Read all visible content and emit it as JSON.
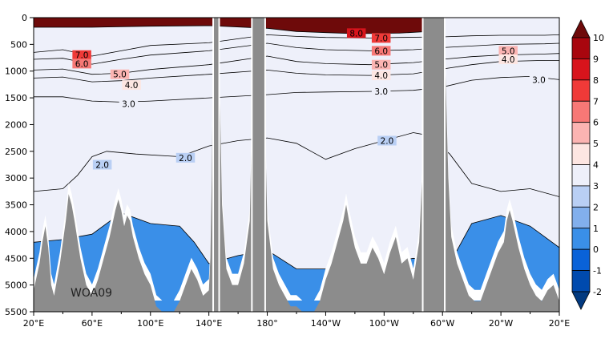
{
  "chart_data": {
    "type": "heatmap",
    "title": "",
    "watermark": "WOA09",
    "xlabel": "",
    "ylabel": "",
    "x_ticks": [
      "20°E",
      "60°E",
      "100°E",
      "140°E",
      "180°",
      "140°W",
      "100°W",
      "60°W",
      "20°W",
      "20°E"
    ],
    "y_ticks": [
      "0",
      "500",
      "1000",
      "1500",
      "2000",
      "2500",
      "3000",
      "3500",
      "4000",
      "4500",
      "5000",
      "5500"
    ],
    "ylim": [
      0,
      5500
    ],
    "y_inverted": true,
    "colorbar": {
      "labels": [
        "10",
        "9",
        "8",
        "7",
        "6",
        "5",
        "4",
        "3",
        "2",
        "1",
        "0",
        "-1",
        "-2"
      ],
      "colors": [
        "#6e0a0a",
        "#a8060e",
        "#d8141c",
        "#f03a38",
        "#f77876",
        "#fbb4b2",
        "#fde6e2",
        "#eef0fa",
        "#b9cff4",
        "#82afec",
        "#3a8fe8",
        "#0a62d8",
        "#004aae",
        "#023a80"
      ],
      "extend": "both"
    },
    "contour_labels": [
      {
        "text": "8.0",
        "x_deg": 241,
        "depth": 290
      },
      {
        "text": "7.0",
        "x_deg": 258,
        "depth": 380
      },
      {
        "text": "6.0",
        "x_deg": 258,
        "depth": 620
      },
      {
        "text": "5.0",
        "x_deg": 258,
        "depth": 880
      },
      {
        "text": "4.0",
        "x_deg": 258,
        "depth": 1080
      },
      {
        "text": "3.0",
        "x_deg": 258,
        "depth": 1380
      },
      {
        "text": "2.0",
        "x_deg": 262,
        "depth": 2300
      },
      {
        "text": "7.0",
        "x_deg": 53,
        "depth": 700
      },
      {
        "text": "6.0",
        "x_deg": 53,
        "depth": 860
      },
      {
        "text": "5.0",
        "x_deg": 79,
        "depth": 1060
      },
      {
        "text": "4.0",
        "x_deg": 87,
        "depth": 1260
      },
      {
        "text": "3.0",
        "x_deg": 85,
        "depth": 1610
      },
      {
        "text": "2.0",
        "x_deg": 124,
        "depth": 2620
      },
      {
        "text": "2.0",
        "x_deg": 67,
        "depth": 2750
      },
      {
        "text": "5.0",
        "x_deg": 345,
        "depth": 620
      },
      {
        "text": "4.0",
        "x_deg": 345,
        "depth": 780
      },
      {
        "text": "3.0",
        "x_deg": 366,
        "depth": 1160
      }
    ],
    "isolines": [
      {
        "level": 8,
        "pts": [
          [
            20,
            180
          ],
          [
            60,
            180
          ],
          [
            100,
            160
          ],
          [
            140,
            150
          ],
          [
            180,
            200
          ],
          [
            200,
            260
          ],
          [
            220,
            280
          ],
          [
            240,
            300
          ],
          [
            270,
            290
          ],
          [
            290,
            260
          ],
          [
            300,
            240
          ]
        ]
      },
      {
        "level": 7,
        "pts": [
          [
            20,
            650
          ],
          [
            40,
            600
          ],
          [
            60,
            720
          ],
          [
            80,
            620
          ],
          [
            100,
            520
          ],
          [
            140,
            470
          ],
          [
            180,
            320
          ],
          [
            200,
            350
          ],
          [
            220,
            370
          ],
          [
            250,
            380
          ],
          [
            270,
            370
          ],
          [
            300,
            360
          ],
          [
            320,
            340
          ],
          [
            340,
            330
          ],
          [
            370,
            330
          ],
          [
            380,
            320
          ]
        ]
      },
      {
        "level": 6,
        "pts": [
          [
            20,
            780
          ],
          [
            40,
            760
          ],
          [
            60,
            870
          ],
          [
            80,
            780
          ],
          [
            100,
            700
          ],
          [
            140,
            620
          ],
          [
            180,
            480
          ],
          [
            200,
            560
          ],
          [
            220,
            600
          ],
          [
            250,
            620
          ],
          [
            280,
            600
          ],
          [
            300,
            560
          ],
          [
            320,
            530
          ],
          [
            340,
            500
          ],
          [
            370,
            490
          ],
          [
            380,
            480
          ]
        ]
      },
      {
        "level": 5,
        "pts": [
          [
            20,
            980
          ],
          [
            40,
            960
          ],
          [
            60,
            1060
          ],
          [
            80,
            1040
          ],
          [
            100,
            970
          ],
          [
            140,
            880
          ],
          [
            180,
            720
          ],
          [
            200,
            820
          ],
          [
            220,
            860
          ],
          [
            250,
            880
          ],
          [
            280,
            840
          ],
          [
            300,
            780
          ],
          [
            320,
            730
          ],
          [
            340,
            700
          ],
          [
            370,
            680
          ],
          [
            380,
            670
          ]
        ]
      },
      {
        "level": 4,
        "pts": [
          [
            20,
            1130
          ],
          [
            40,
            1110
          ],
          [
            60,
            1200
          ],
          [
            80,
            1180
          ],
          [
            100,
            1130
          ],
          [
            140,
            1060
          ],
          [
            180,
            980
          ],
          [
            200,
            1040
          ],
          [
            220,
            1070
          ],
          [
            250,
            1080
          ],
          [
            280,
            1050
          ],
          [
            300,
            960
          ],
          [
            320,
            880
          ],
          [
            340,
            820
          ],
          [
            370,
            800
          ],
          [
            380,
            800
          ]
        ]
      },
      {
        "level": 3,
        "pts": [
          [
            20,
            1480
          ],
          [
            40,
            1480
          ],
          [
            60,
            1560
          ],
          [
            80,
            1580
          ],
          [
            100,
            1560
          ],
          [
            140,
            1500
          ],
          [
            180,
            1440
          ],
          [
            200,
            1400
          ],
          [
            220,
            1390
          ],
          [
            250,
            1380
          ],
          [
            280,
            1360
          ],
          [
            300,
            1300
          ],
          [
            320,
            1170
          ],
          [
            340,
            1120
          ],
          [
            360,
            1100
          ],
          [
            380,
            1160
          ]
        ]
      },
      {
        "level": 2,
        "pts": [
          [
            20,
            3250
          ],
          [
            40,
            3200
          ],
          [
            50,
            2950
          ],
          [
            60,
            2600
          ],
          [
            70,
            2500
          ],
          [
            90,
            2550
          ],
          [
            120,
            2600
          ],
          [
            140,
            2400
          ],
          [
            160,
            2300
          ],
          [
            180,
            2250
          ],
          [
            200,
            2350
          ],
          [
            220,
            2650
          ],
          [
            240,
            2450
          ],
          [
            260,
            2300
          ],
          [
            280,
            2150
          ],
          [
            290,
            2200
          ],
          [
            305,
            2550
          ],
          [
            320,
            3100
          ],
          [
            340,
            3250
          ],
          [
            360,
            3200
          ],
          [
            380,
            3350
          ]
        ]
      },
      {
        "level": 1,
        "pts": [
          [
            20,
            4200
          ],
          [
            40,
            4150
          ],
          [
            60,
            4050
          ],
          [
            80,
            3650
          ],
          [
            100,
            3850
          ],
          [
            120,
            3900
          ],
          [
            130,
            4200
          ],
          [
            140,
            4600
          ],
          [
            160,
            4450
          ],
          [
            180,
            4350
          ],
          [
            200,
            4700
          ],
          [
            240,
            4700
          ],
          [
            280,
            4500
          ],
          [
            305,
            4600
          ],
          [
            320,
            3850
          ],
          [
            340,
            3700
          ],
          [
            360,
            3900
          ],
          [
            380,
            4300
          ]
        ]
      }
    ],
    "land_columns": [
      {
        "x0": 143.5,
        "x1": 146.5,
        "top": 0
      },
      {
        "x0": 170,
        "x1": 178,
        "top": 0
      },
      {
        "x0": 287,
        "x1": 301,
        "top": 0
      }
    ],
    "bathymetry": [
      [
        20,
        5100
      ],
      [
        24,
        4600
      ],
      [
        26,
        4200
      ],
      [
        28,
        3900
      ],
      [
        30,
        4300
      ],
      [
        32,
        5000
      ],
      [
        34,
        5200
      ],
      [
        38,
        4600
      ],
      [
        42,
        3800
      ],
      [
        44,
        3300
      ],
      [
        46,
        3500
      ],
      [
        48,
        3800
      ],
      [
        52,
        4500
      ],
      [
        56,
        5000
      ],
      [
        60,
        5200
      ],
      [
        64,
        4900
      ],
      [
        68,
        4500
      ],
      [
        72,
        4100
      ],
      [
        76,
        3600
      ],
      [
        78,
        3400
      ],
      [
        80,
        3600
      ],
      [
        82,
        3900
      ],
      [
        84,
        3700
      ],
      [
        86,
        3800
      ],
      [
        88,
        4100
      ],
      [
        92,
        4500
      ],
      [
        96,
        4800
      ],
      [
        100,
        5000
      ],
      [
        104,
        5400
      ],
      [
        108,
        5500
      ],
      [
        112,
        5500
      ],
      [
        116,
        5500
      ],
      [
        120,
        5300
      ],
      [
        124,
        5000
      ],
      [
        128,
        4700
      ],
      [
        132,
        4900
      ],
      [
        136,
        5200
      ],
      [
        140,
        5100
      ],
      [
        141,
        4500
      ],
      [
        142,
        3000
      ],
      [
        143,
        500
      ],
      [
        143.5,
        0
      ],
      [
        146.5,
        0
      ],
      [
        147,
        800
      ],
      [
        149,
        3500
      ],
      [
        152,
        4700
      ],
      [
        156,
        5000
      ],
      [
        160,
        5000
      ],
      [
        164,
        4600
      ],
      [
        168,
        3800
      ],
      [
        170,
        1200
      ],
      [
        170.5,
        0
      ],
      [
        177.5,
        0
      ],
      [
        178,
        1500
      ],
      [
        180,
        3800
      ],
      [
        184,
        4700
      ],
      [
        188,
        5000
      ],
      [
        192,
        5200
      ],
      [
        196,
        5400
      ],
      [
        200,
        5400
      ],
      [
        204,
        5500
      ],
      [
        208,
        5500
      ],
      [
        212,
        5500
      ],
      [
        216,
        5300
      ],
      [
        220,
        4900
      ],
      [
        224,
        4600
      ],
      [
        228,
        4200
      ],
      [
        232,
        3800
      ],
      [
        234,
        3500
      ],
      [
        236,
        3800
      ],
      [
        240,
        4300
      ],
      [
        244,
        4600
      ],
      [
        248,
        4600
      ],
      [
        252,
        4300
      ],
      [
        256,
        4500
      ],
      [
        260,
        4800
      ],
      [
        264,
        4400
      ],
      [
        268,
        4100
      ],
      [
        272,
        4600
      ],
      [
        276,
        4500
      ],
      [
        280,
        4900
      ],
      [
        284,
        4200
      ],
      [
        286,
        3000
      ],
      [
        286.5,
        0
      ],
      [
        301.5,
        0
      ],
      [
        302,
        1000
      ],
      [
        304,
        3000
      ],
      [
        306,
        4100
      ],
      [
        310,
        4600
      ],
      [
        314,
        4900
      ],
      [
        318,
        5200
      ],
      [
        322,
        5300
      ],
      [
        326,
        5300
      ],
      [
        330,
        5000
      ],
      [
        334,
        4700
      ],
      [
        338,
        4400
      ],
      [
        342,
        4200
      ],
      [
        344,
        3800
      ],
      [
        346,
        3600
      ],
      [
        348,
        3800
      ],
      [
        352,
        4300
      ],
      [
        356,
        4700
      ],
      [
        360,
        5000
      ],
      [
        364,
        5200
      ],
      [
        368,
        5300
      ],
      [
        372,
        5100
      ],
      [
        376,
        5000
      ],
      [
        380,
        5300
      ]
    ]
  }
}
